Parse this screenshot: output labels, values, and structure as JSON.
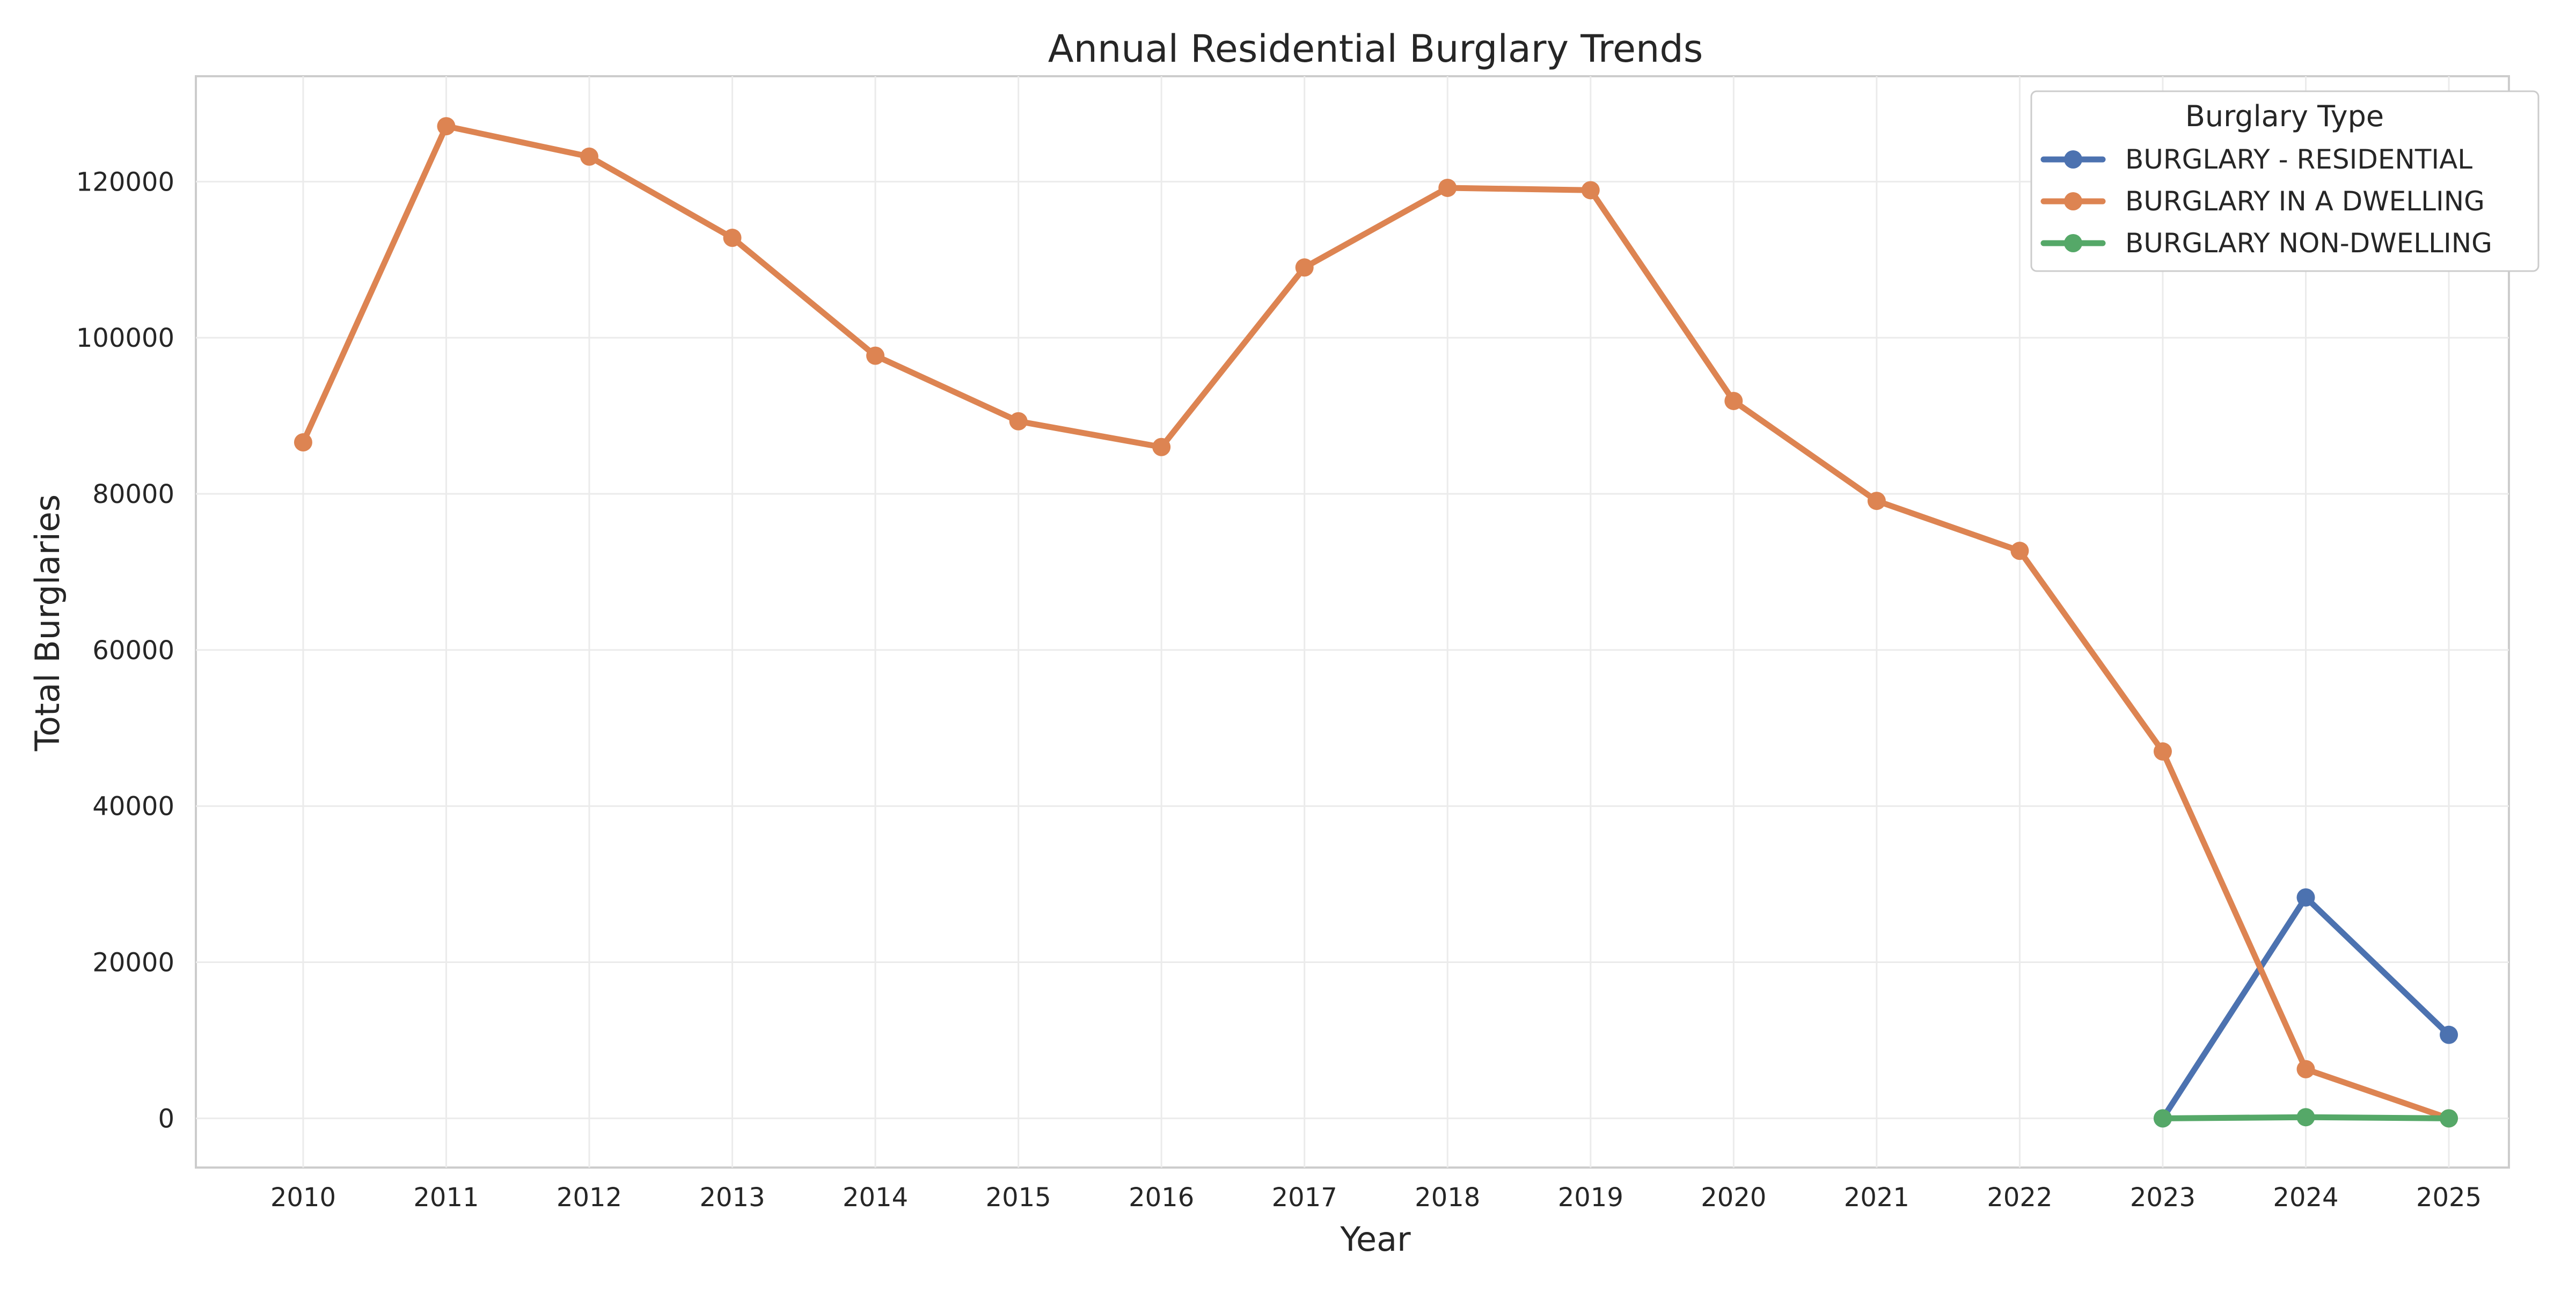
{
  "chart_data": {
    "type": "line",
    "title": "Annual Residential Burglary Trends",
    "xlabel": "Year",
    "ylabel": "Total Burglaries",
    "x": [
      2010,
      2011,
      2012,
      2013,
      2014,
      2015,
      2016,
      2017,
      2018,
      2019,
      2020,
      2021,
      2022,
      2023,
      2024,
      2025
    ],
    "x_tick_labels": [
      "2010",
      "2011",
      "2012",
      "2013",
      "2014",
      "2015",
      "2016",
      "2017",
      "2018",
      "2019",
      "2020",
      "2021",
      "2022",
      "2023",
      "2024",
      "2025"
    ],
    "xlim": [
      2009.25,
      2025.42
    ],
    "ylim": [
      -6300,
      133500
    ],
    "y_ticks": [
      0,
      20000,
      40000,
      60000,
      80000,
      100000,
      120000
    ],
    "y_tick_labels": [
      "0",
      "20000",
      "40000",
      "60000",
      "80000",
      "100000",
      "120000"
    ],
    "grid": true,
    "legend": {
      "title": "Burglary Type",
      "placement": "top-right"
    },
    "series": [
      {
        "name": "BURGLARY - RESIDENTIAL",
        "color": "#4c72b0",
        "x": [
          2023,
          2024,
          2025
        ],
        "values": [
          0,
          28300,
          10700
        ]
      },
      {
        "name": "BURGLARY IN A DWELLING",
        "color": "#dd8452",
        "x": [
          2010,
          2011,
          2012,
          2013,
          2014,
          2015,
          2016,
          2017,
          2018,
          2019,
          2020,
          2021,
          2022,
          2023,
          2024,
          2025
        ],
        "values": [
          86600,
          127100,
          123200,
          112800,
          97700,
          89300,
          86000,
          109000,
          119200,
          118900,
          91900,
          79100,
          72700,
          47000,
          6300,
          0
        ]
      },
      {
        "name": "BURGLARY NON-DWELLING",
        "color": "#55a868",
        "x": [
          2023,
          2024,
          2025
        ],
        "values": [
          0,
          150,
          0
        ]
      }
    ]
  }
}
